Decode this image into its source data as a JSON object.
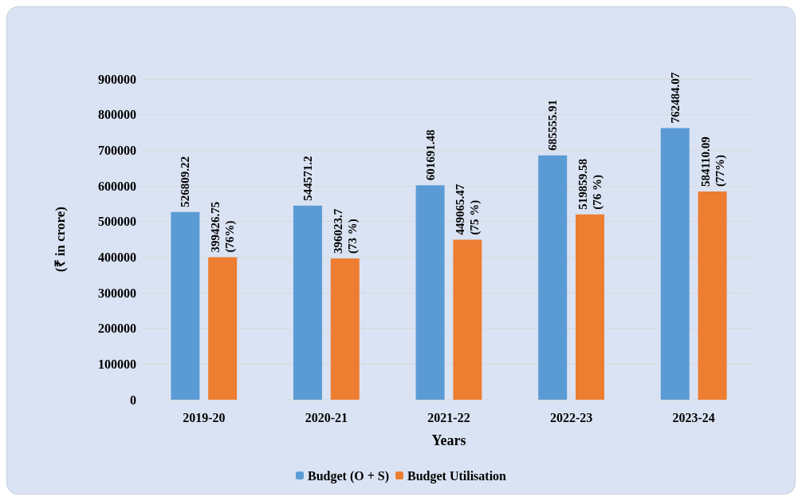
{
  "chart_data": {
    "type": "bar",
    "xlabel": "Years",
    "ylabel": "(₹ in crore)",
    "categories": [
      "2019-20",
      "2020-21",
      "2021-22",
      "2022-23",
      "2023-24"
    ],
    "series": [
      {
        "name": "Budget (O + S)",
        "color": "#5b9bd5",
        "values": [
          526809.22,
          544571.2,
          601691.48,
          685555.91,
          762484.07
        ],
        "value_labels": [
          "526809.22",
          "544571.2",
          "601691.48",
          "685555.91",
          "762484.07"
        ]
      },
      {
        "name": "Budget Utilisation",
        "color": "#ed7d31",
        "values": [
          399426.75,
          396023.7,
          449065.47,
          519859.58,
          584110.09
        ],
        "value_labels": [
          "399426.75 (76%)",
          "396023.7 (73 %)",
          "449065.47 (75 %)",
          "519859.58 (76 %)",
          "584110.09 (77%)"
        ]
      }
    ],
    "ylim": [
      0,
      900000
    ],
    "yticks": [
      0,
      100000,
      200000,
      300000,
      400000,
      500000,
      600000,
      700000,
      800000,
      900000
    ],
    "grid": "y",
    "legend": "bottom"
  }
}
